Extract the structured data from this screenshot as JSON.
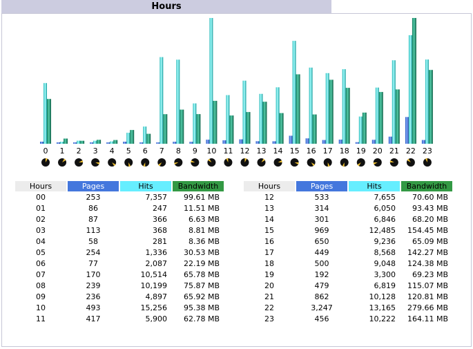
{
  "title": "Hours",
  "colors": {
    "pages": "#4477dd",
    "hits": "#33cccc",
    "bandwidth": "#229977",
    "header_hours": "#ececec"
  },
  "table": {
    "headers": {
      "hours": "Hours",
      "pages": "Pages",
      "hits": "Hits",
      "bandwidth": "Bandwidth"
    },
    "left": [
      {
        "hour": "00",
        "pages": "253",
        "hits": "7,357",
        "bandwidth": "99.61 MB"
      },
      {
        "hour": "01",
        "pages": "86",
        "hits": "247",
        "bandwidth": "11.51 MB"
      },
      {
        "hour": "02",
        "pages": "87",
        "hits": "366",
        "bandwidth": "6.63 MB"
      },
      {
        "hour": "03",
        "pages": "113",
        "hits": "368",
        "bandwidth": "8.81 MB"
      },
      {
        "hour": "04",
        "pages": "58",
        "hits": "281",
        "bandwidth": "8.36 MB"
      },
      {
        "hour": "05",
        "pages": "254",
        "hits": "1,336",
        "bandwidth": "30.53 MB"
      },
      {
        "hour": "06",
        "pages": "77",
        "hits": "2,087",
        "bandwidth": "22.19 MB"
      },
      {
        "hour": "07",
        "pages": "170",
        "hits": "10,514",
        "bandwidth": "65.78 MB"
      },
      {
        "hour": "08",
        "pages": "239",
        "hits": "10,199",
        "bandwidth": "75.87 MB"
      },
      {
        "hour": "09",
        "pages": "236",
        "hits": "4,897",
        "bandwidth": "65.92 MB"
      },
      {
        "hour": "10",
        "pages": "493",
        "hits": "15,256",
        "bandwidth": "95.38 MB"
      },
      {
        "hour": "11",
        "pages": "417",
        "hits": "5,900",
        "bandwidth": "62.78 MB"
      }
    ],
    "right": [
      {
        "hour": "12",
        "pages": "533",
        "hits": "7,655",
        "bandwidth": "70.60 MB"
      },
      {
        "hour": "13",
        "pages": "314",
        "hits": "6,050",
        "bandwidth": "93.43 MB"
      },
      {
        "hour": "14",
        "pages": "301",
        "hits": "6,846",
        "bandwidth": "68.20 MB"
      },
      {
        "hour": "15",
        "pages": "969",
        "hits": "12,485",
        "bandwidth": "154.45 MB"
      },
      {
        "hour": "16",
        "pages": "650",
        "hits": "9,236",
        "bandwidth": "65.09 MB"
      },
      {
        "hour": "17",
        "pages": "449",
        "hits": "8,568",
        "bandwidth": "142.27 MB"
      },
      {
        "hour": "18",
        "pages": "500",
        "hits": "9,048",
        "bandwidth": "124.38 MB"
      },
      {
        "hour": "19",
        "pages": "192",
        "hits": "3,300",
        "bandwidth": "69.23 MB"
      },
      {
        "hour": "20",
        "pages": "479",
        "hits": "6,819",
        "bandwidth": "115.07 MB"
      },
      {
        "hour": "21",
        "pages": "862",
        "hits": "10,128",
        "bandwidth": "120.81 MB"
      },
      {
        "hour": "22",
        "pages": "3,247",
        "hits": "13,165",
        "bandwidth": "279.66 MB"
      },
      {
        "hour": "23",
        "pages": "456",
        "hits": "10,222",
        "bandwidth": "164.11 MB"
      }
    ]
  },
  "chart_data": {
    "type": "bar",
    "categories": [
      "0",
      "1",
      "2",
      "3",
      "4",
      "5",
      "6",
      "7",
      "8",
      "9",
      "10",
      "11",
      "12",
      "13",
      "14",
      "15",
      "16",
      "17",
      "18",
      "19",
      "20",
      "21",
      "22",
      "23"
    ],
    "series": [
      {
        "name": "Pages",
        "values": [
          253,
          86,
          87,
          113,
          58,
          254,
          77,
          170,
          239,
          236,
          493,
          417,
          533,
          314,
          301,
          969,
          650,
          449,
          500,
          192,
          479,
          862,
          3247,
          456
        ]
      },
      {
        "name": "Hits",
        "values": [
          7357,
          247,
          366,
          368,
          281,
          1336,
          2087,
          10514,
          10199,
          4897,
          15256,
          5900,
          7655,
          6050,
          6846,
          12485,
          9236,
          8568,
          9048,
          3300,
          6819,
          10128,
          13165,
          10222
        ]
      },
      {
        "name": "Bandwidth",
        "values": [
          99.61,
          11.51,
          6.63,
          8.81,
          8.36,
          30.53,
          22.19,
          65.78,
          75.87,
          65.92,
          95.38,
          62.78,
          70.6,
          93.43,
          68.2,
          154.45,
          65.09,
          142.27,
          124.38,
          69.23,
          115.07,
          120.81,
          279.66,
          164.11
        ]
      }
    ],
    "ylim": [
      0,
      15256
    ],
    "ylim_bandwidth": [
      0,
      279.66
    ],
    "clock_icons": true
  }
}
